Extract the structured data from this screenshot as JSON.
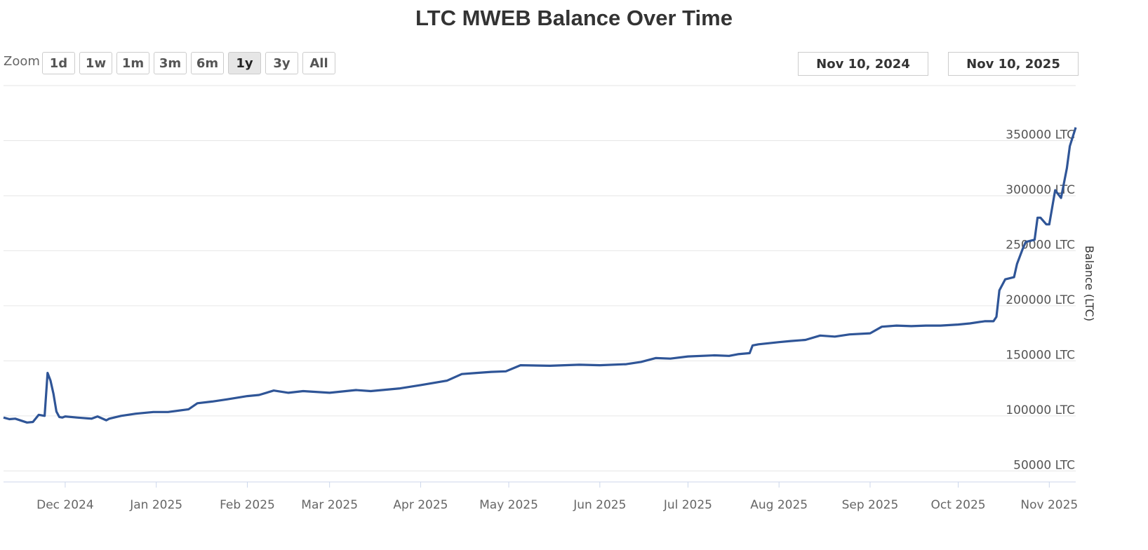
{
  "title": "LTC MWEB Balance Over Time",
  "zoom": {
    "label": "Zoom",
    "buttons": [
      "1d",
      "1w",
      "1m",
      "3m",
      "6m",
      "1y",
      "3y",
      "All"
    ],
    "active": "1y"
  },
  "range": {
    "from": "Nov 10, 2024",
    "arrow": "→",
    "to": "Nov 10, 2025"
  },
  "colors": {
    "line": "#2f5597",
    "grid": "#e6e6e6",
    "axis": "#ccd6eb"
  },
  "chart_data": {
    "type": "line",
    "title": "LTC MWEB Balance Over Time",
    "ylabel": "Balance (LTC)",
    "xlabel": "",
    "ylim": [
      40000,
      400000
    ],
    "xlim": [
      "2024-11-10",
      "2025-11-10"
    ],
    "y_ticks": [
      "50000 LTC",
      "100000 LTC",
      "150000 LTC",
      "200000 LTC",
      "250000 LTC",
      "300000 LTC",
      "350000 LTC"
    ],
    "y_tick_values": [
      50000,
      100000,
      150000,
      200000,
      250000,
      300000,
      350000
    ],
    "x_ticks": [
      "Dec 2024",
      "Jan 2025",
      "Feb 2025",
      "Mar 2025",
      "Apr 2025",
      "May 2025",
      "Jun 2025",
      "Jul 2025",
      "Aug 2025",
      "Sep 2025",
      "Oct 2025",
      "Nov 2025"
    ],
    "x_tick_dates": [
      "2024-12-01",
      "2025-01-01",
      "2025-02-01",
      "2025-03-01",
      "2025-04-01",
      "2025-05-01",
      "2025-06-01",
      "2025-07-01",
      "2025-08-01",
      "2025-09-01",
      "2025-10-01",
      "2025-11-01"
    ],
    "grid": true,
    "series": [
      {
        "x": [
          "2024-11-10",
          "2024-11-12",
          "2024-11-14",
          "2024-11-18",
          "2024-11-20",
          "2024-11-22",
          "2024-11-24",
          "2024-11-25",
          "2024-11-26",
          "2024-11-27",
          "2024-11-28",
          "2024-11-29",
          "2024-11-30",
          "2024-12-01",
          "2024-12-05",
          "2024-12-10",
          "2024-12-12",
          "2024-12-15",
          "2024-12-16",
          "2024-12-20",
          "2024-12-25",
          "2024-12-31",
          "2025-01-05",
          "2025-01-12",
          "2025-01-15",
          "2025-01-20",
          "2025-01-25",
          "2025-02-01",
          "2025-02-05",
          "2025-02-10",
          "2025-02-15",
          "2025-02-20",
          "2025-03-01",
          "2025-03-10",
          "2025-03-15",
          "2025-03-25",
          "2025-04-01",
          "2025-04-10",
          "2025-04-15",
          "2025-04-20",
          "2025-04-25",
          "2025-04-30",
          "2025-05-05",
          "2025-05-15",
          "2025-05-25",
          "2025-06-01",
          "2025-06-10",
          "2025-06-15",
          "2025-06-20",
          "2025-06-25",
          "2025-07-01",
          "2025-07-10",
          "2025-07-15",
          "2025-07-18",
          "2025-07-22",
          "2025-07-23",
          "2025-07-25",
          "2025-08-01",
          "2025-08-05",
          "2025-08-10",
          "2025-08-15",
          "2025-08-20",
          "2025-08-25",
          "2025-09-01",
          "2025-09-05",
          "2025-09-10",
          "2025-09-15",
          "2025-09-20",
          "2025-09-25",
          "2025-10-01",
          "2025-10-05",
          "2025-10-10",
          "2025-10-13",
          "2025-10-14",
          "2025-10-15",
          "2025-10-17",
          "2025-10-20",
          "2025-10-21",
          "2025-10-23",
          "2025-10-24",
          "2025-10-27",
          "2025-10-28",
          "2025-10-29",
          "2025-10-31",
          "2025-11-01",
          "2025-11-03",
          "2025-11-05",
          "2025-11-07",
          "2025-11-08",
          "2025-11-10"
        ],
        "y": [
          98500,
          97000,
          97500,
          94000,
          94500,
          101000,
          100000,
          139000,
          132000,
          120000,
          104000,
          99000,
          98500,
          99500,
          98500,
          97500,
          99500,
          96000,
          97500,
          100000,
          102000,
          103500,
          103500,
          106000,
          111500,
          113000,
          115000,
          118000,
          119000,
          123000,
          121000,
          122500,
          121000,
          123500,
          122500,
          125000,
          128000,
          132000,
          138000,
          139000,
          140000,
          140500,
          146000,
          145500,
          146500,
          146000,
          147000,
          149000,
          152500,
          152000,
          154000,
          155000,
          154500,
          156000,
          157000,
          164000,
          165000,
          167000,
          168000,
          169000,
          173000,
          172000,
          174000,
          175000,
          181000,
          182000,
          181500,
          182000,
          182000,
          183000,
          184000,
          186000,
          186000,
          190000,
          214000,
          224000,
          226000,
          238000,
          252000,
          258000,
          260000,
          280000,
          280000,
          274000,
          274000,
          305000,
          298000,
          325000,
          345000,
          362000
        ]
      }
    ]
  }
}
